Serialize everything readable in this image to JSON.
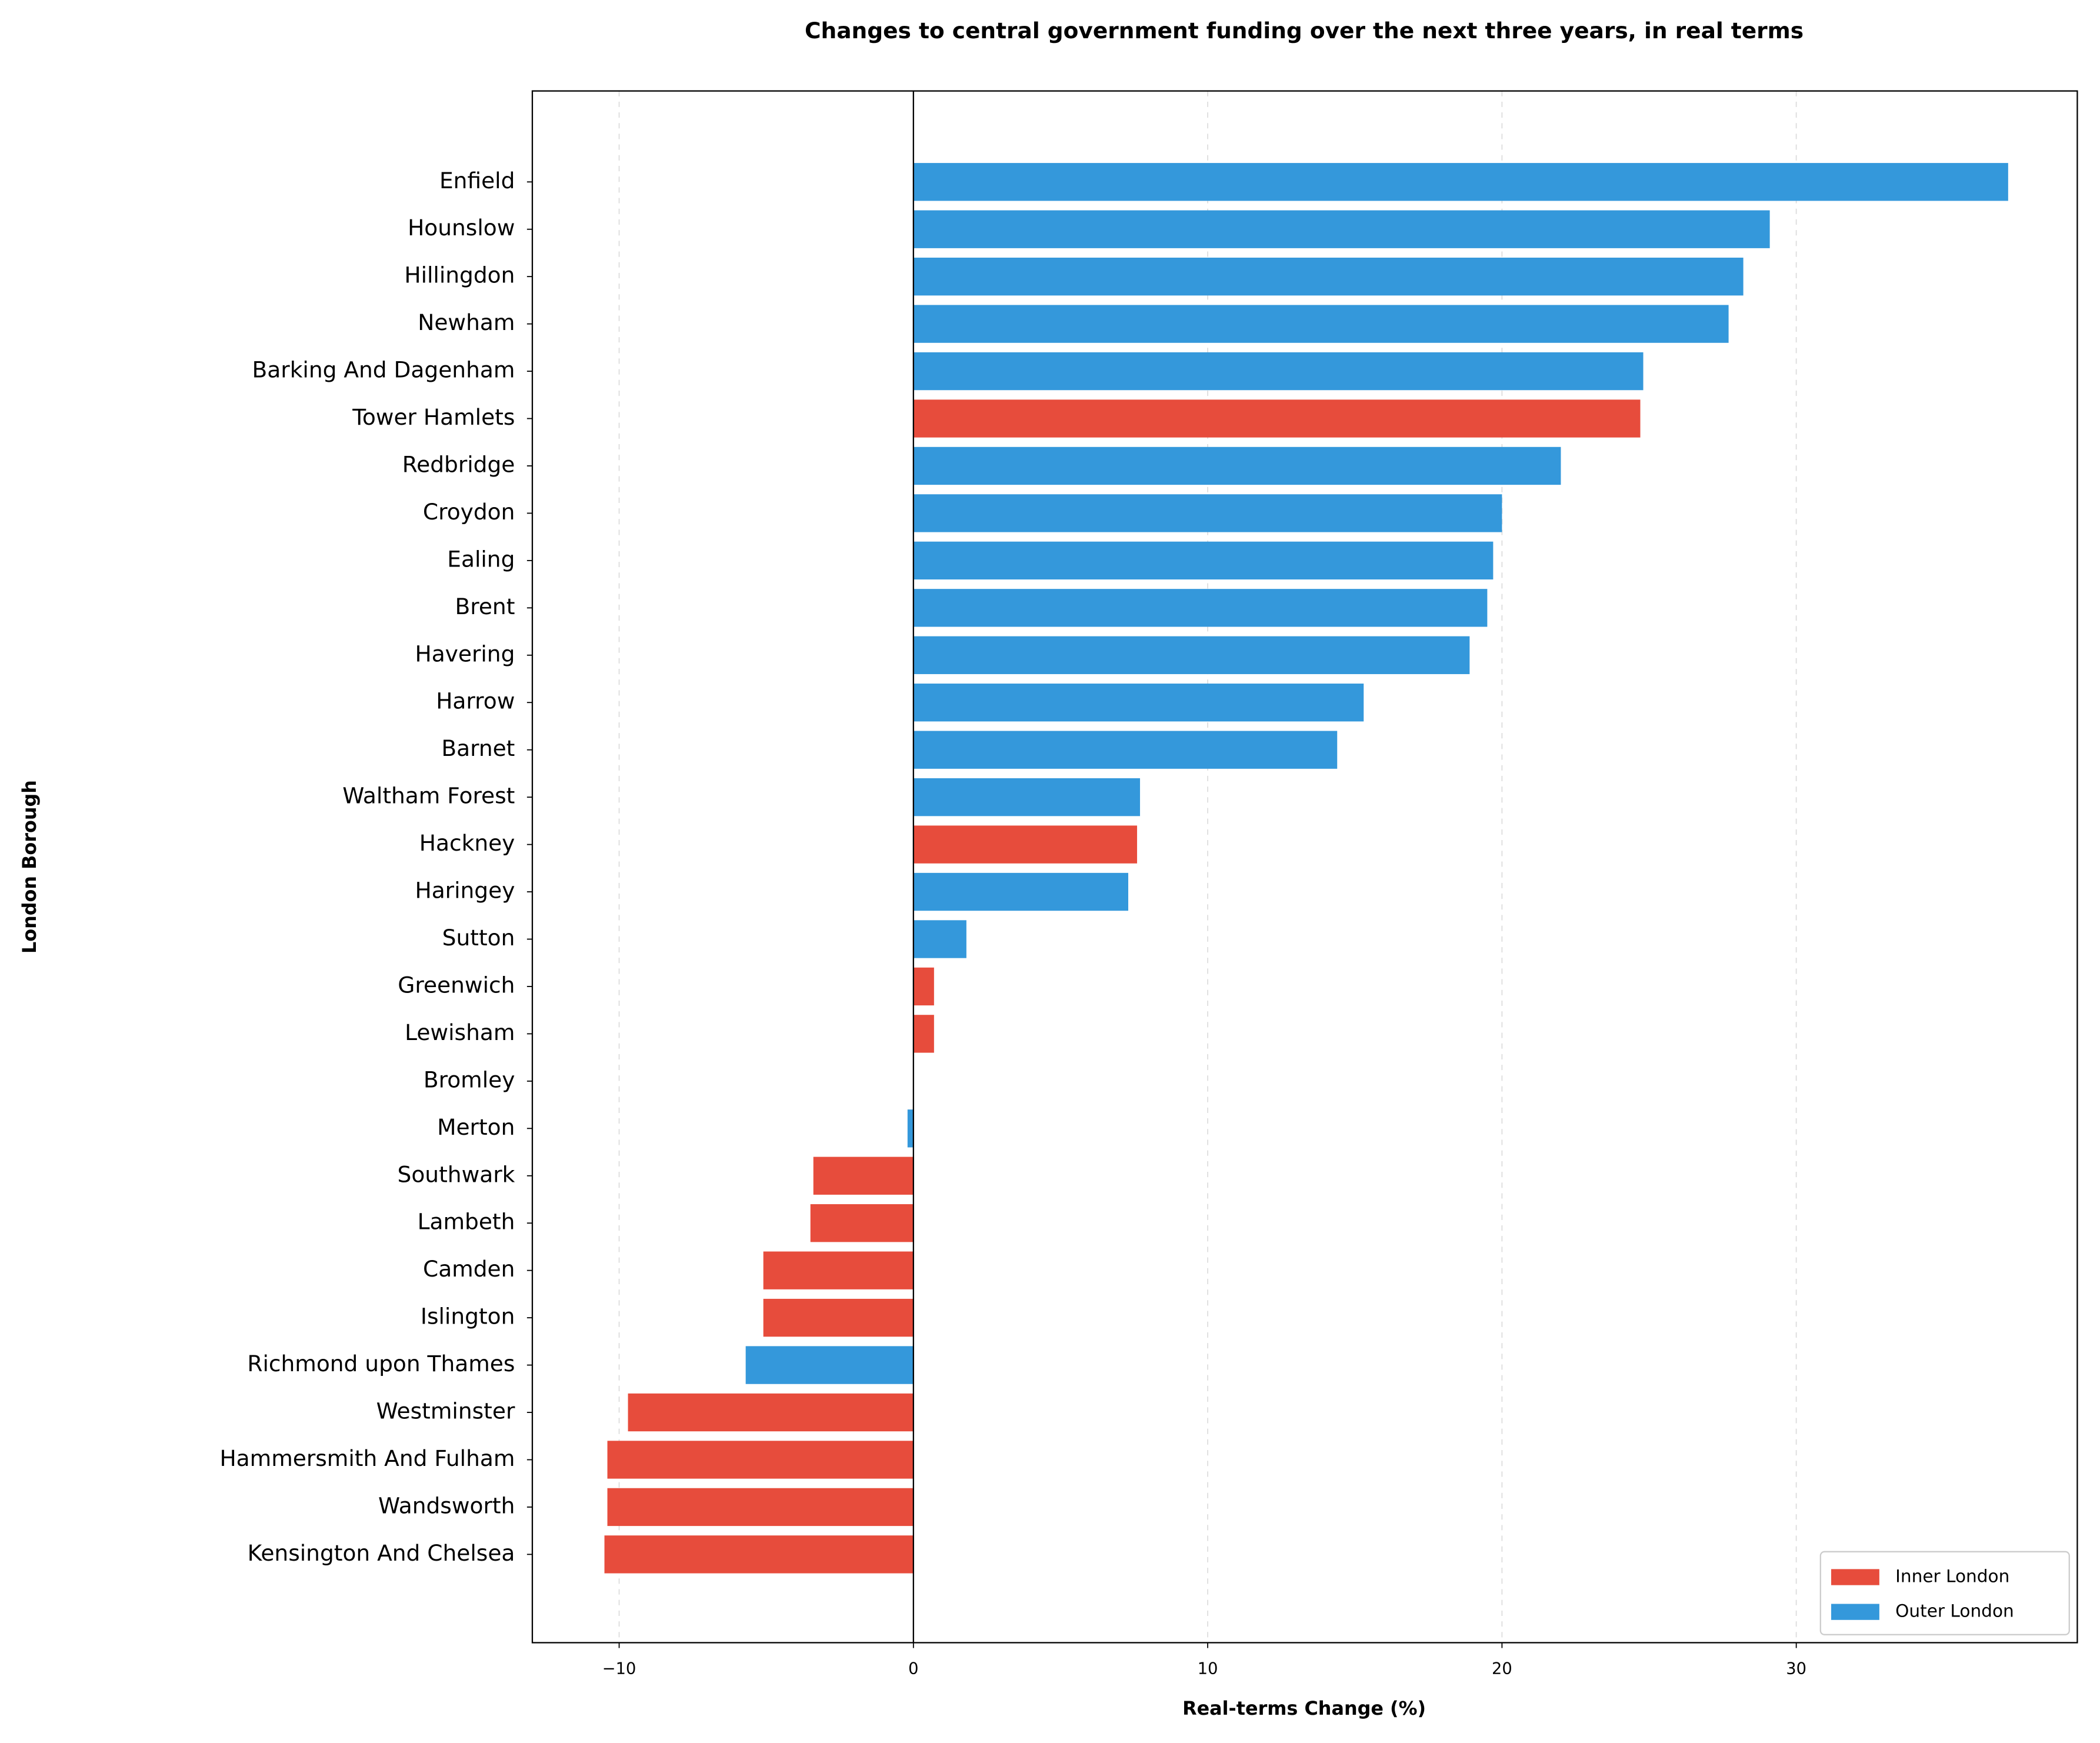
{
  "chart_data": {
    "type": "barh",
    "title": "Changes to central government funding over the next three years, in real terms",
    "xlabel": "Real-terms Change (%)",
    "ylabel": "London Borough",
    "categories": [
      "Enfield",
      "Hounslow",
      "Hillingdon",
      "Newham",
      "Barking And Dagenham",
      "Tower Hamlets",
      "Redbridge",
      "Croydon",
      "Ealing",
      "Brent",
      "Havering",
      "Harrow",
      "Barnet",
      "Waltham Forest",
      "Hackney",
      "Haringey",
      "Sutton",
      "Greenwich",
      "Lewisham",
      "Bromley",
      "Merton",
      "Southwark",
      "Lambeth",
      "Camden",
      "Islington",
      "Richmond upon Thames",
      "Westminster",
      "Hammersmith And Fulham",
      "Wandsworth",
      "Kensington And Chelsea"
    ],
    "series": [
      {
        "name": "Inner London",
        "color": "#e74c3c",
        "values": [
          null,
          null,
          null,
          null,
          null,
          24.7,
          null,
          null,
          null,
          null,
          null,
          null,
          null,
          null,
          7.6,
          null,
          null,
          0.7,
          0.7,
          null,
          null,
          -3.4,
          -3.5,
          -5.1,
          -5.1,
          null,
          -9.7,
          -10.4,
          -10.4,
          -10.5
        ]
      },
      {
        "name": "Outer London",
        "color": "#3498db",
        "values": [
          37.2,
          29.1,
          28.2,
          27.7,
          24.8,
          null,
          22.0,
          20.0,
          19.7,
          19.5,
          18.9,
          15.3,
          14.4,
          7.7,
          null,
          7.3,
          1.8,
          null,
          null,
          0,
          -0.2,
          null,
          null,
          null,
          null,
          -5.7,
          null,
          null,
          null,
          null
        ]
      }
    ],
    "xlim": [
      -12.95,
      39.55
    ],
    "xticks": [
      {
        "value": -10,
        "label": "−10"
      },
      0,
      10,
      20,
      30
    ],
    "grid": true,
    "legend": "lower right"
  }
}
